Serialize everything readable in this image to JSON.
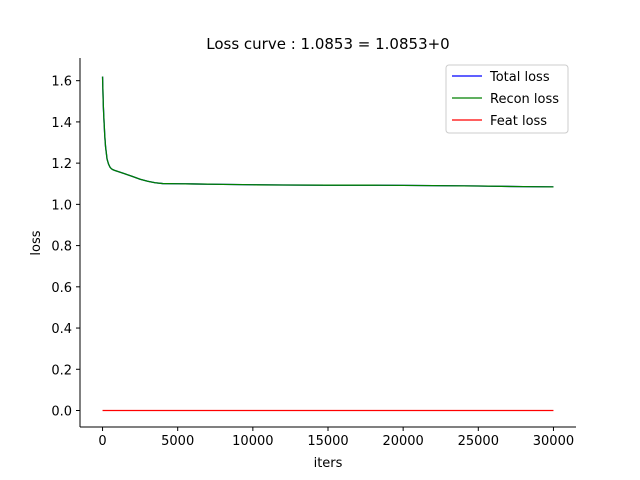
{
  "chart_data": {
    "type": "line",
    "title": "Loss curve : 1.0853 = 1.0853+0",
    "xlabel": "iters",
    "ylabel": "loss",
    "xlim": [
      -1500,
      31500
    ],
    "ylim": [
      -0.08,
      1.71
    ],
    "xticks": [
      0,
      5000,
      10000,
      15000,
      20000,
      25000,
      30000
    ],
    "yticks": [
      0.0,
      0.2,
      0.4,
      0.6,
      0.8,
      1.0,
      1.2,
      1.4,
      1.6
    ],
    "xtick_labels": [
      "0",
      "5000",
      "10000",
      "15000",
      "20000",
      "25000",
      "30000"
    ],
    "ytick_labels": [
      "0.0",
      "0.2",
      "0.4",
      "0.6",
      "0.8",
      "1.0",
      "1.2",
      "1.4",
      "1.6"
    ],
    "grid": false,
    "legend_position": "top-right",
    "x": [
      0,
      50,
      100,
      150,
      200,
      300,
      400,
      500,
      600,
      700,
      800,
      1000,
      1500,
      2000,
      2500,
      3000,
      3500,
      4000,
      5000,
      6000,
      8000,
      10000,
      12000,
      15000,
      18000,
      20000,
      22000,
      25000,
      28000,
      30000
    ],
    "series": [
      {
        "name": "Total loss",
        "color": "#0000ff",
        "values": [
          1.62,
          1.48,
          1.4,
          1.33,
          1.28,
          1.22,
          1.195,
          1.18,
          1.172,
          1.168,
          1.165,
          1.16,
          1.148,
          1.135,
          1.122,
          1.112,
          1.105,
          1.101,
          1.1,
          1.099,
          1.097,
          1.095,
          1.094,
          1.093,
          1.093,
          1.092,
          1.091,
          1.089,
          1.086,
          1.085
        ]
      },
      {
        "name": "Recon loss",
        "color": "#008000",
        "values": [
          1.62,
          1.48,
          1.4,
          1.33,
          1.28,
          1.22,
          1.195,
          1.18,
          1.172,
          1.168,
          1.165,
          1.16,
          1.148,
          1.135,
          1.122,
          1.112,
          1.105,
          1.101,
          1.1,
          1.099,
          1.097,
          1.095,
          1.094,
          1.093,
          1.093,
          1.092,
          1.091,
          1.089,
          1.086,
          1.085
        ]
      },
      {
        "name": "Feat loss",
        "color": "#ff0000",
        "values": [
          0,
          0,
          0,
          0,
          0,
          0,
          0,
          0,
          0,
          0,
          0,
          0,
          0,
          0,
          0,
          0,
          0,
          0,
          0,
          0,
          0,
          0,
          0,
          0,
          0,
          0,
          0,
          0,
          0,
          0
        ]
      }
    ]
  }
}
